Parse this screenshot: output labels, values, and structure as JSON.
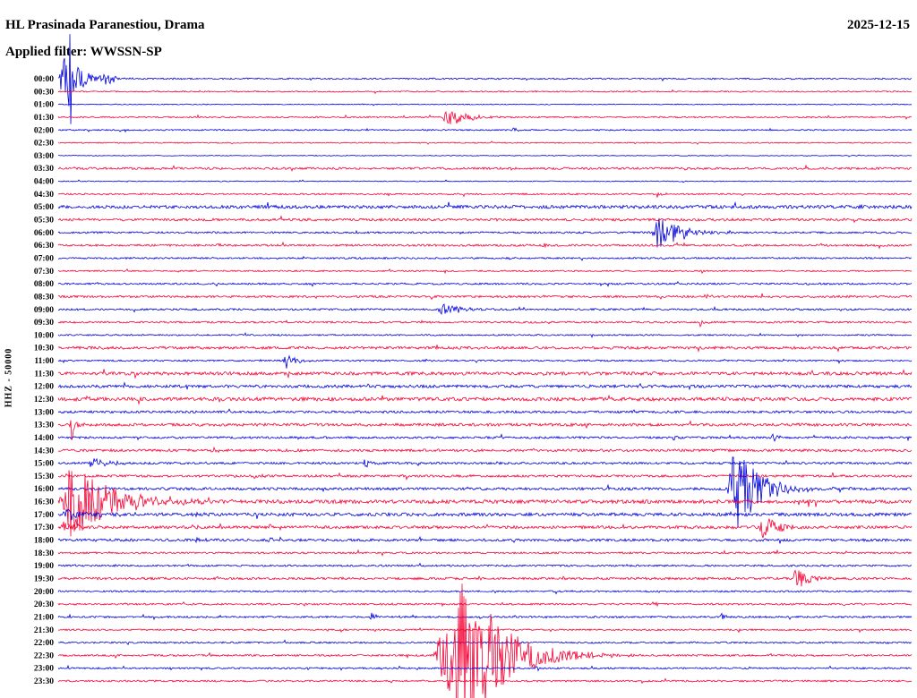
{
  "chart_data": {
    "type": "line",
    "kind": "helicorder-seismogram",
    "title": "HL Prasinada Paranestiou, Drama",
    "date": "2025-12-15",
    "filter": "Applied filter: WWSSN-SP",
    "channel_scale_label": "HHZ - 50000",
    "row_interval_minutes": 30,
    "first_row_time": "00:00",
    "last_row_time": "23:30",
    "trace_colors": {
      "blue": "#0000dd",
      "red": "#f50336"
    },
    "label_color": "#000000",
    "rows": [
      {
        "time": "00:00",
        "color": "blue",
        "noise": 0.8,
        "events": [
          {
            "pos": 0.0,
            "amp": 30,
            "dur": 40
          },
          {
            "pos": 0.012,
            "amp": 88,
            "dur": 3
          },
          {
            "pos": 0.05,
            "amp": 7,
            "dur": 25
          }
        ]
      },
      {
        "time": "00:30",
        "color": "red",
        "noise": 0.7,
        "events": []
      },
      {
        "time": "01:00",
        "color": "blue",
        "noise": 0.5,
        "events": []
      },
      {
        "time": "01:30",
        "color": "red",
        "noise": 0.8,
        "events": [
          {
            "pos": 0.45,
            "amp": 13,
            "dur": 40
          }
        ]
      },
      {
        "time": "02:00",
        "color": "blue",
        "noise": 0.7,
        "events": [
          {
            "pos": 0.53,
            "amp": 3,
            "dur": 12
          }
        ]
      },
      {
        "time": "02:30",
        "color": "red",
        "noise": 0.6,
        "events": []
      },
      {
        "time": "03:00",
        "color": "blue",
        "noise": 0.4,
        "events": []
      },
      {
        "time": "03:30",
        "color": "red",
        "noise": 1.2,
        "events": []
      },
      {
        "time": "04:00",
        "color": "blue",
        "noise": 0.5,
        "events": []
      },
      {
        "time": "04:30",
        "color": "red",
        "noise": 0.9,
        "events": [
          {
            "pos": 0.7,
            "amp": 3.5,
            "dur": 10
          }
        ]
      },
      {
        "time": "05:00",
        "color": "blue",
        "noise": 1.8,
        "events": []
      },
      {
        "time": "05:30",
        "color": "red",
        "noise": 1.4,
        "events": []
      },
      {
        "time": "06:00",
        "color": "blue",
        "noise": 1.0,
        "events": [
          {
            "pos": 0.695,
            "amp": 22,
            "dur": 50
          }
        ]
      },
      {
        "time": "06:30",
        "color": "red",
        "noise": 1.1,
        "events": [
          {
            "pos": 0.185,
            "amp": 2.5,
            "dur": 8
          },
          {
            "pos": 0.565,
            "amp": 3.5,
            "dur": 12
          }
        ]
      },
      {
        "time": "07:00",
        "color": "blue",
        "noise": 0.9,
        "events": []
      },
      {
        "time": "07:30",
        "color": "red",
        "noise": 0.8,
        "events": []
      },
      {
        "time": "08:00",
        "color": "blue",
        "noise": 1.0,
        "events": []
      },
      {
        "time": "08:30",
        "color": "red",
        "noise": 1.2,
        "events": [
          {
            "pos": 0.755,
            "amp": 4.5,
            "dur": 10
          }
        ]
      },
      {
        "time": "09:00",
        "color": "blue",
        "noise": 1.0,
        "events": [
          {
            "pos": 0.443,
            "amp": 7,
            "dur": 45
          }
        ]
      },
      {
        "time": "09:30",
        "color": "red",
        "noise": 1.0,
        "events": [
          {
            "pos": 0.75,
            "amp": 4.5,
            "dur": 10
          }
        ]
      },
      {
        "time": "10:00",
        "color": "blue",
        "noise": 0.8,
        "events": []
      },
      {
        "time": "10:30",
        "color": "red",
        "noise": 1.5,
        "events": [
          {
            "pos": 0.435,
            "amp": 3,
            "dur": 10
          }
        ]
      },
      {
        "time": "11:00",
        "color": "blue",
        "noise": 0.9,
        "events": [
          {
            "pos": 0.263,
            "amp": 11,
            "dur": 22
          }
        ]
      },
      {
        "time": "11:30",
        "color": "red",
        "noise": 1.8,
        "events": []
      },
      {
        "time": "12:00",
        "color": "blue",
        "noise": 1.6,
        "events": []
      },
      {
        "time": "12:30",
        "color": "red",
        "noise": 2.0,
        "events": [
          {
            "pos": 0.03,
            "amp": 4,
            "dur": 10
          },
          {
            "pos": 0.185,
            "amp": 3,
            "dur": 8
          }
        ]
      },
      {
        "time": "13:00",
        "color": "blue",
        "noise": 1.3,
        "events": []
      },
      {
        "time": "13:30",
        "color": "red",
        "noise": 1.6,
        "events": [
          {
            "pos": 0.013,
            "amp": 24,
            "dur": 8
          }
        ]
      },
      {
        "time": "14:00",
        "color": "blue",
        "noise": 1.2,
        "events": [
          {
            "pos": 0.72,
            "amp": 4,
            "dur": 10
          },
          {
            "pos": 0.835,
            "amp": 4.5,
            "dur": 12
          }
        ]
      },
      {
        "time": "14:30",
        "color": "red",
        "noise": 1.4,
        "events": [
          {
            "pos": 0.178,
            "amp": 5,
            "dur": 10
          }
        ]
      },
      {
        "time": "15:00",
        "color": "blue",
        "noise": 1.2,
        "events": [
          {
            "pos": 0.035,
            "amp": 10,
            "dur": 30
          },
          {
            "pos": 0.357,
            "amp": 8,
            "dur": 10
          }
        ]
      },
      {
        "time": "15:30",
        "color": "red",
        "noise": 1.3,
        "events": [
          {
            "pos": 0.228,
            "amp": 4.5,
            "dur": 12
          }
        ]
      },
      {
        "time": "16:00",
        "color": "blue",
        "noise": 1.5,
        "events": [
          {
            "pos": 0.784,
            "amp": 55,
            "dur": 55
          }
        ]
      },
      {
        "time": "16:30",
        "color": "red",
        "noise": 2.0,
        "events": [
          {
            "pos": 0.001,
            "amp": 50,
            "dur": 90
          }
        ]
      },
      {
        "time": "17:00",
        "color": "blue",
        "noise": 1.8,
        "events": [
          {
            "pos": 0.0,
            "amp": 8,
            "dur": 60
          },
          {
            "pos": 0.16,
            "amp": 3,
            "dur": 8
          }
        ]
      },
      {
        "time": "17:30",
        "color": "red",
        "noise": 1.6,
        "events": [
          {
            "pos": 0.0,
            "amp": 6,
            "dur": 40
          },
          {
            "pos": 0.155,
            "amp": 4,
            "dur": 8
          },
          {
            "pos": 0.245,
            "amp": 4,
            "dur": 8
          },
          {
            "pos": 0.821,
            "amp": 16,
            "dur": 35
          }
        ]
      },
      {
        "time": "18:00",
        "color": "blue",
        "noise": 1.4,
        "events": [
          {
            "pos": 0.16,
            "amp": 4.5,
            "dur": 10
          },
          {
            "pos": 0.245,
            "amp": 4,
            "dur": 10
          }
        ]
      },
      {
        "time": "18:30",
        "color": "red",
        "noise": 1.0,
        "events": []
      },
      {
        "time": "19:00",
        "color": "blue",
        "noise": 1.0,
        "events": []
      },
      {
        "time": "19:30",
        "color": "red",
        "noise": 1.3,
        "events": [
          {
            "pos": 0.49,
            "amp": 3,
            "dur": 8
          },
          {
            "pos": 0.859,
            "amp": 13,
            "dur": 30
          }
        ]
      },
      {
        "time": "20:00",
        "color": "blue",
        "noise": 0.9,
        "events": []
      },
      {
        "time": "20:30",
        "color": "red",
        "noise": 1.0,
        "events": [
          {
            "pos": 0.695,
            "amp": 4.5,
            "dur": 10
          }
        ]
      },
      {
        "time": "21:00",
        "color": "blue",
        "noise": 1.0,
        "events": [
          {
            "pos": 0.365,
            "amp": 5.5,
            "dur": 10
          },
          {
            "pos": 0.775,
            "amp": 4.5,
            "dur": 10
          }
        ]
      },
      {
        "time": "21:30",
        "color": "red",
        "noise": 0.9,
        "events": []
      },
      {
        "time": "22:00",
        "color": "blue",
        "noise": 0.9,
        "events": [
          {
            "pos": 0.968,
            "amp": 3,
            "dur": 8
          }
        ]
      },
      {
        "time": "22:30",
        "color": "red",
        "noise": 1.0,
        "events": [
          {
            "pos": 0.438,
            "amp": 100,
            "dur": 90,
            "rise": 35
          }
        ]
      },
      {
        "time": "23:00",
        "color": "blue",
        "noise": 0.9,
        "events": [
          {
            "pos": 0.559,
            "amp": 3.5,
            "dur": 10
          }
        ]
      },
      {
        "time": "23:30",
        "color": "red",
        "noise": 1.0,
        "events": []
      }
    ]
  }
}
